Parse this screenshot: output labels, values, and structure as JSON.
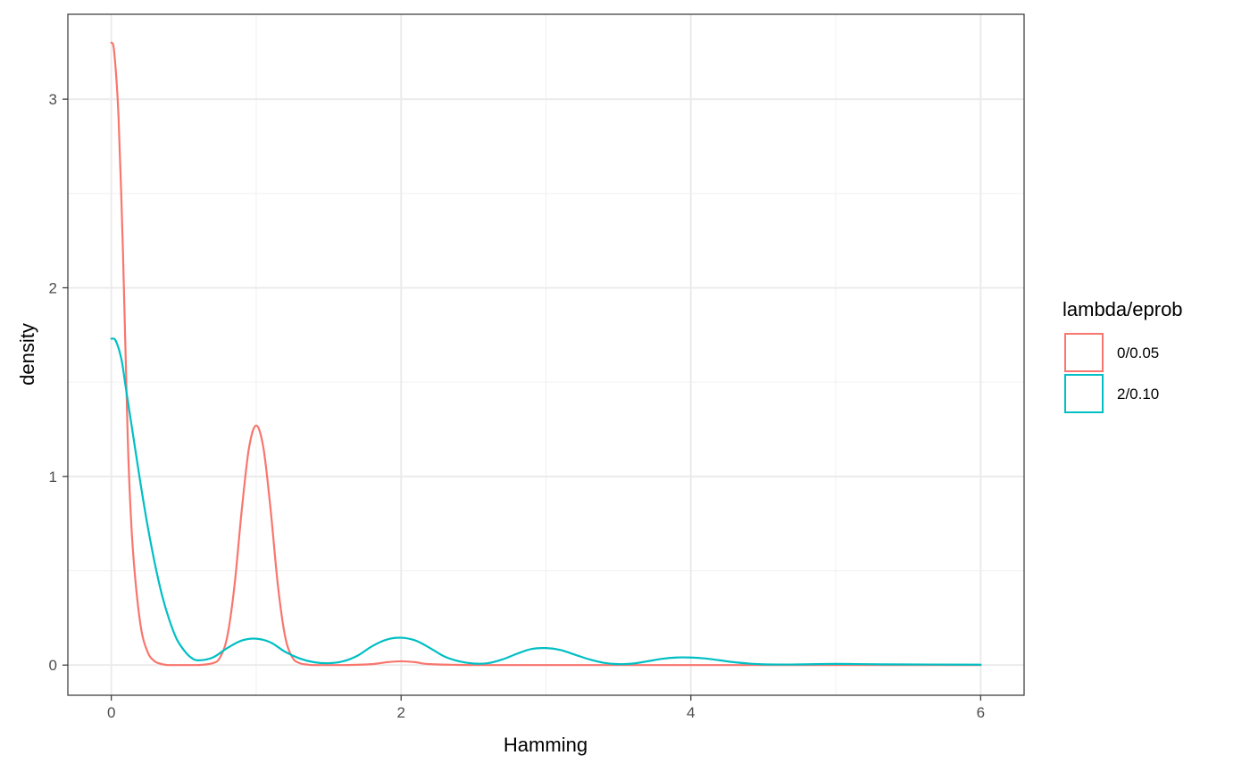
{
  "chart_data": {
    "type": "line",
    "xlabel": "Hamming",
    "ylabel": "density",
    "xlim": [
      -0.3,
      6.3
    ],
    "ylim": [
      -0.16,
      3.45
    ],
    "x_ticks": [
      0,
      2,
      4,
      6
    ],
    "x_tick_labels": [
      "0",
      "2",
      "4",
      "6"
    ],
    "y_ticks": [
      0,
      1,
      2,
      3
    ],
    "y_tick_labels": [
      "0",
      "1",
      "2",
      "3"
    ],
    "x_minor_grid": [
      1,
      3,
      5
    ],
    "y_minor_grid": [
      0.5,
      1.5,
      2.5
    ],
    "grid": true,
    "legend": {
      "title": "lambda/eprob",
      "position": "right",
      "entries": [
        "0/0.05",
        "2/0.10"
      ]
    },
    "series": [
      {
        "name": "0/0.05",
        "color": "#F8766D",
        "x": [
          0,
          0.02,
          0.05,
          0.08,
          0.1,
          0.12,
          0.15,
          0.2,
          0.25,
          0.3,
          0.35,
          0.4,
          0.5,
          0.6,
          0.7,
          0.75,
          0.8,
          0.85,
          0.9,
          0.95,
          1.0,
          1.05,
          1.1,
          1.15,
          1.2,
          1.25,
          1.3,
          1.35,
          1.4,
          1.6,
          1.8,
          1.9,
          2.0,
          2.1,
          2.2,
          2.5,
          3.0,
          4.0,
          5.0,
          6.0
        ],
        "y": [
          3.3,
          3.25,
          2.9,
          2.2,
          1.6,
          1.05,
          0.6,
          0.22,
          0.07,
          0.02,
          0.005,
          0.0,
          0.0,
          0.0,
          0.01,
          0.04,
          0.15,
          0.42,
          0.82,
          1.15,
          1.27,
          1.15,
          0.82,
          0.42,
          0.15,
          0.04,
          0.01,
          0.003,
          0.0,
          0.0,
          0.005,
          0.015,
          0.02,
          0.015,
          0.005,
          0.0,
          0.0,
          0.0,
          0.0,
          0.0
        ]
      },
      {
        "name": "2/0.10",
        "color": "#00BFC4",
        "x": [
          0,
          0.03,
          0.07,
          0.1,
          0.15,
          0.2,
          0.25,
          0.3,
          0.35,
          0.4,
          0.45,
          0.5,
          0.55,
          0.6,
          0.7,
          0.8,
          0.9,
          1.0,
          1.1,
          1.2,
          1.3,
          1.4,
          1.5,
          1.6,
          1.7,
          1.8,
          1.9,
          2.0,
          2.1,
          2.2,
          2.3,
          2.4,
          2.5,
          2.6,
          2.7,
          2.8,
          2.9,
          3.0,
          3.1,
          3.2,
          3.3,
          3.4,
          3.5,
          3.6,
          3.7,
          3.8,
          3.9,
          4.0,
          4.1,
          4.2,
          4.3,
          4.4,
          4.5,
          4.7,
          5.0,
          5.3,
          6.0
        ],
        "y": [
          1.73,
          1.72,
          1.62,
          1.47,
          1.22,
          0.97,
          0.74,
          0.54,
          0.37,
          0.24,
          0.14,
          0.08,
          0.04,
          0.025,
          0.04,
          0.09,
          0.13,
          0.14,
          0.12,
          0.07,
          0.035,
          0.015,
          0.01,
          0.02,
          0.05,
          0.1,
          0.135,
          0.145,
          0.13,
          0.09,
          0.045,
          0.02,
          0.008,
          0.01,
          0.03,
          0.06,
          0.085,
          0.09,
          0.08,
          0.055,
          0.03,
          0.012,
          0.005,
          0.008,
          0.02,
          0.033,
          0.04,
          0.04,
          0.035,
          0.025,
          0.015,
          0.008,
          0.004,
          0.003,
          0.006,
          0.004,
          0.002
        ]
      }
    ]
  }
}
